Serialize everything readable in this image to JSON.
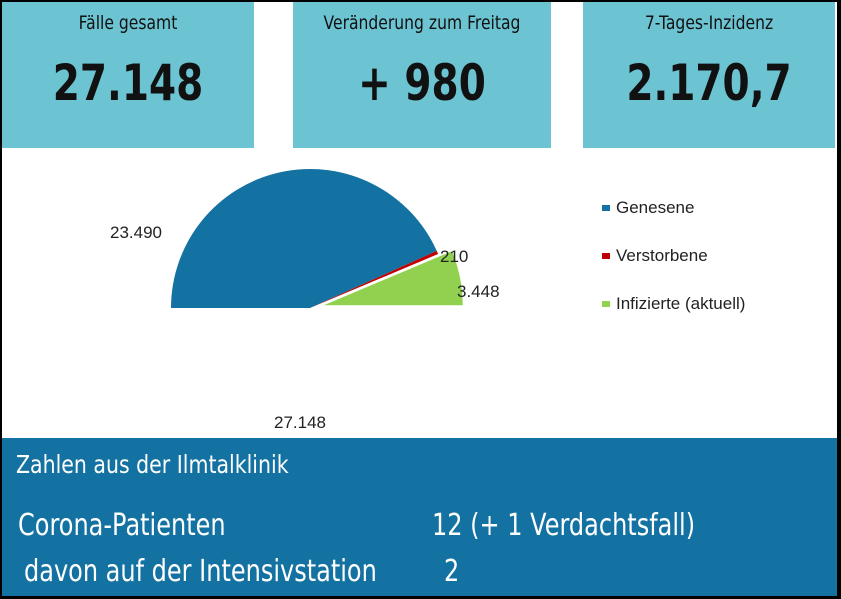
{
  "kpis": [
    {
      "label": "Fälle gesamt",
      "value": "27.148"
    },
    {
      "label": "Veränderung zum Freitag",
      "value": "+ 980"
    },
    {
      "label": "7-Tages-Inzidenz",
      "value": "2.170,7"
    }
  ],
  "chart_data": {
    "type": "pie",
    "variant": "half-pie",
    "title": "",
    "total_label": "27.148",
    "total": 27148,
    "categories": [
      "Genesene",
      "Verstorbene",
      "Infizierte (aktuell)"
    ],
    "values": [
      23490,
      210,
      3448
    ],
    "data_labels": [
      "23.490",
      "210",
      "3.448"
    ],
    "colors": [
      "#1372a1",
      "#c00000",
      "#92d050"
    ],
    "exploded": [
      false,
      false,
      true
    ],
    "legend_position": "right"
  },
  "legend": [
    {
      "label": "Genesene",
      "color": "#1372a1"
    },
    {
      "label": "Verstorbene",
      "color": "#c00000"
    },
    {
      "label": "Infizierte (aktuell)",
      "color": "#92d050"
    }
  ],
  "clinic": {
    "title": "Zahlen aus der Ilmtalklinik",
    "rows": [
      {
        "label": "Corona-Patienten",
        "value": "12 (+ 1 Verdachtsfall)"
      },
      {
        "label": "davon auf der Intensivstation",
        "value": "2"
      }
    ]
  },
  "colors": {
    "kpi_bg": "#6cc3d1",
    "clinic_bg": "#1372a1"
  }
}
